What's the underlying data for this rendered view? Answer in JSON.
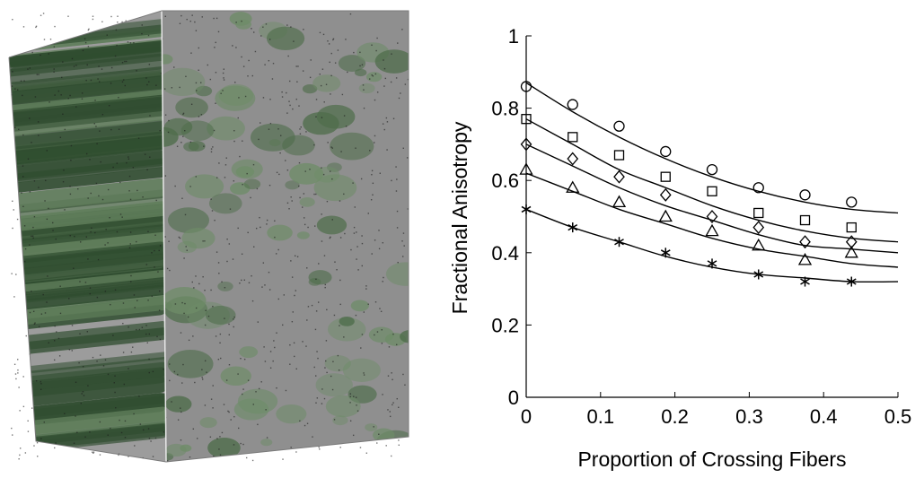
{
  "chart_data": {
    "type": "scatter",
    "title": "",
    "xlabel": "Proportion of Crossing Fibers",
    "ylabel": "Fractional Anisotropy",
    "xlim": [
      0,
      0.5
    ],
    "ylim": [
      0,
      1
    ],
    "xticks": [
      "0",
      "0.1",
      "0.2",
      "0.3",
      "0.4",
      "0.5"
    ],
    "xtick_values": [
      0,
      0.1,
      0.2,
      0.3,
      0.4,
      0.5
    ],
    "yticks": [
      "0",
      "0.2",
      "0.4",
      "0.6",
      "0.8",
      "1"
    ],
    "ytick_values": [
      0,
      0.2,
      0.4,
      0.6,
      0.8,
      1
    ],
    "grid": false,
    "x": [
      0,
      0.0625,
      0.125,
      0.1875,
      0.25,
      0.3125,
      0.375,
      0.4375
    ],
    "series": [
      {
        "marker": "circle",
        "values": [
          0.86,
          0.81,
          0.75,
          0.68,
          0.63,
          0.58,
          0.56,
          0.54
        ],
        "fit": [
          0.87,
          0.79,
          0.72,
          0.66,
          0.61,
          0.57,
          0.54,
          0.52,
          0.51
        ]
      },
      {
        "marker": "square",
        "values": [
          0.77,
          0.72,
          0.67,
          0.61,
          0.57,
          0.51,
          0.49,
          0.47
        ],
        "fit": [
          0.77,
          0.7,
          0.63,
          0.58,
          0.53,
          0.49,
          0.46,
          0.44,
          0.43
        ]
      },
      {
        "marker": "diamond",
        "values": [
          0.7,
          0.66,
          0.61,
          0.56,
          0.5,
          0.47,
          0.43,
          0.43
        ],
        "fit": [
          0.7,
          0.64,
          0.58,
          0.53,
          0.49,
          0.45,
          0.42,
          0.41,
          0.4
        ]
      },
      {
        "marker": "triangle",
        "values": [
          0.63,
          0.58,
          0.54,
          0.5,
          0.46,
          0.42,
          0.38,
          0.4
        ],
        "fit": [
          0.62,
          0.57,
          0.52,
          0.48,
          0.44,
          0.41,
          0.39,
          0.37,
          0.36
        ]
      },
      {
        "marker": "asterisk",
        "values": [
          0.52,
          0.47,
          0.43,
          0.4,
          0.37,
          0.34,
          0.32,
          0.32
        ],
        "fit": [
          0.52,
          0.47,
          0.43,
          0.39,
          0.36,
          0.34,
          0.33,
          0.32,
          0.32
        ]
      }
    ],
    "fit_x": [
      0,
      0.0625,
      0.125,
      0.1875,
      0.25,
      0.3125,
      0.375,
      0.4375,
      0.5
    ]
  },
  "colors": {
    "cube_face": "#9a9a9a",
    "fiber_dark": "#2e4a2e",
    "fiber_light": "#6b8a66",
    "ink": "#000000"
  }
}
